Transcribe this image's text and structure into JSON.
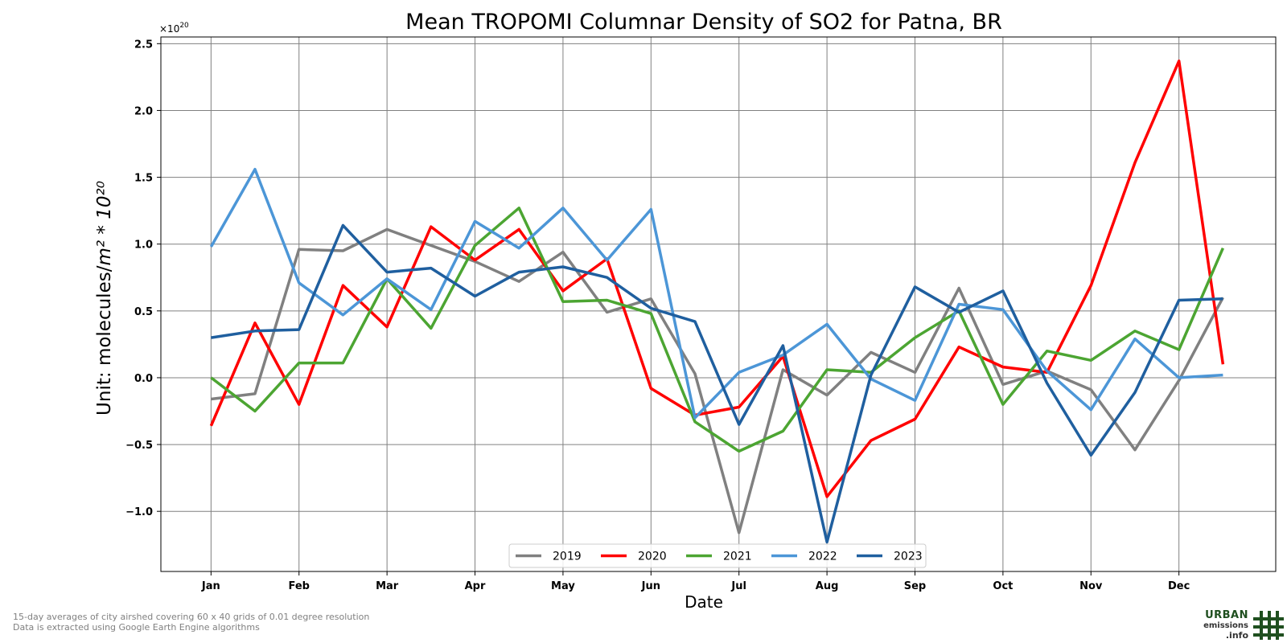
{
  "chart_data": {
    "type": "line",
    "title": "Mean TROPOMI Columnar Density of SO2 for Patna, BR",
    "xlabel": "Date",
    "ylabel_prefix": "Unit: molecules/",
    "ylabel_unit": "m² * 10²⁰",
    "y_offset_prefix": "×10",
    "y_offset_exp": "20",
    "ylim": [
      -1.45,
      2.55
    ],
    "y_ticks": [
      -1.0,
      -0.5,
      0.0,
      0.5,
      1.0,
      1.5,
      2.0,
      2.5
    ],
    "y_tick_labels": [
      "−1.0",
      "−0.5",
      "0.0",
      "0.5",
      "1.0",
      "1.5",
      "2.0",
      "2.5"
    ],
    "x_tick_labels": [
      "Jan",
      "Feb",
      "Mar",
      "Apr",
      "May",
      "Jun",
      "Jul",
      "Aug",
      "Sep",
      "Oct",
      "Nov",
      "Dec"
    ],
    "xlim": [
      -0.57,
      12.1
    ],
    "x": [
      0,
      0.5,
      1,
      1.5,
      2,
      2.5,
      3,
      3.5,
      4,
      4.5,
      5,
      5.5,
      6,
      6.5,
      7,
      7.5,
      8,
      8.5,
      9,
      9.5,
      10,
      10.5,
      11,
      11.5
    ],
    "grid": true,
    "legend_position": "bottom-center",
    "series": [
      {
        "name": "2019",
        "color": "#808080",
        "values": [
          -0.16,
          -0.12,
          0.96,
          0.95,
          1.11,
          0.99,
          0.87,
          0.72,
          0.94,
          0.49,
          0.59,
          0.03,
          -1.16,
          0.06,
          -0.13,
          0.19,
          0.04,
          0.67,
          -0.05,
          0.05,
          -0.09,
          -0.54,
          -0.02,
          0.6
        ]
      },
      {
        "name": "2020",
        "color": "#ff0000",
        "values": [
          -0.36,
          0.41,
          -0.2,
          0.69,
          0.38,
          1.13,
          0.88,
          1.11,
          0.65,
          0.89,
          -0.08,
          -0.28,
          -0.22,
          0.16,
          -0.89,
          -0.47,
          -0.31,
          0.23,
          0.08,
          0.04,
          0.69,
          1.61,
          2.37,
          0.1
        ]
      },
      {
        "name": "2021",
        "color": "#4ca532",
        "values": [
          0.0,
          -0.25,
          0.11,
          0.11,
          0.74,
          0.37,
          0.99,
          1.27,
          0.57,
          0.58,
          0.48,
          -0.33,
          -0.55,
          -0.4,
          0.06,
          0.04,
          0.3,
          0.5,
          -0.2,
          0.2,
          0.13,
          0.35,
          0.21,
          0.97
        ]
      },
      {
        "name": "2022",
        "color": "#4c96d7",
        "values": [
          0.98,
          1.56,
          0.71,
          0.47,
          0.74,
          0.51,
          1.17,
          0.97,
          1.27,
          0.88,
          1.26,
          -0.3,
          0.04,
          0.17,
          0.4,
          -0.01,
          -0.17,
          0.55,
          0.51,
          0.05,
          -0.24,
          0.29,
          0.0,
          0.02
        ]
      },
      {
        "name": "2023",
        "color": "#1f5f9f",
        "values": [
          0.3,
          0.35,
          0.36,
          1.14,
          0.79,
          0.82,
          0.61,
          0.79,
          0.83,
          0.75,
          0.52,
          0.42,
          -0.35,
          0.24,
          -1.23,
          0.02,
          0.68,
          0.49,
          0.65,
          -0.04,
          -0.58,
          -0.11,
          0.58,
          0.59
        ]
      }
    ]
  },
  "footnotes": {
    "line1": "15-day averages of city airshed covering 60 x 40 grids of 0.01 degree resolution",
    "line2": "Data is extracted using Google Earth Engine algorithms"
  },
  "logo": {
    "word1": "URBAN",
    "word2": "emissions",
    "word3": ".info"
  }
}
